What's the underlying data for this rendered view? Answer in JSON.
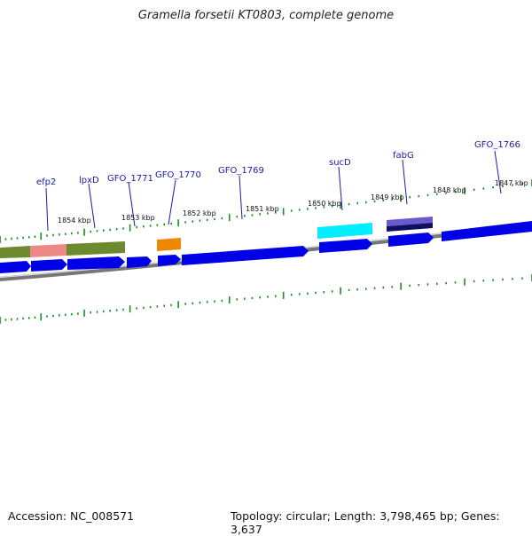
{
  "title": "Gramella forsetii KT0803, complete genome",
  "footer": {
    "accession": "Accession: NC_008571",
    "topology": "Topology: circular; Length: 3,798,465 bp; Genes: 3,637"
  },
  "gene_labels": [
    "efp2",
    "lpxD",
    "GFO_1771",
    "GFO_1770",
    "GFO_1769",
    "sucD",
    "fabG",
    "GFO_1766"
  ],
  "kbp_labels": [
    "1854 kbp",
    "1853 kbp",
    "1852 kbp",
    "1851 kbp",
    "1850 kbp",
    "1849 kbp",
    "1848 kbp",
    "1847 kbp"
  ],
  "colors": {
    "cds": "#0000e6",
    "olive": "#6e8a2e",
    "pink": "#ee8888",
    "orange": "#ee8800",
    "cyan": "#00eeff",
    "purple": "#6a5acd",
    "navy": "#101060",
    "backbone": "#888888",
    "tick": "#1e8c1e",
    "label": "#1a1aa8"
  }
}
